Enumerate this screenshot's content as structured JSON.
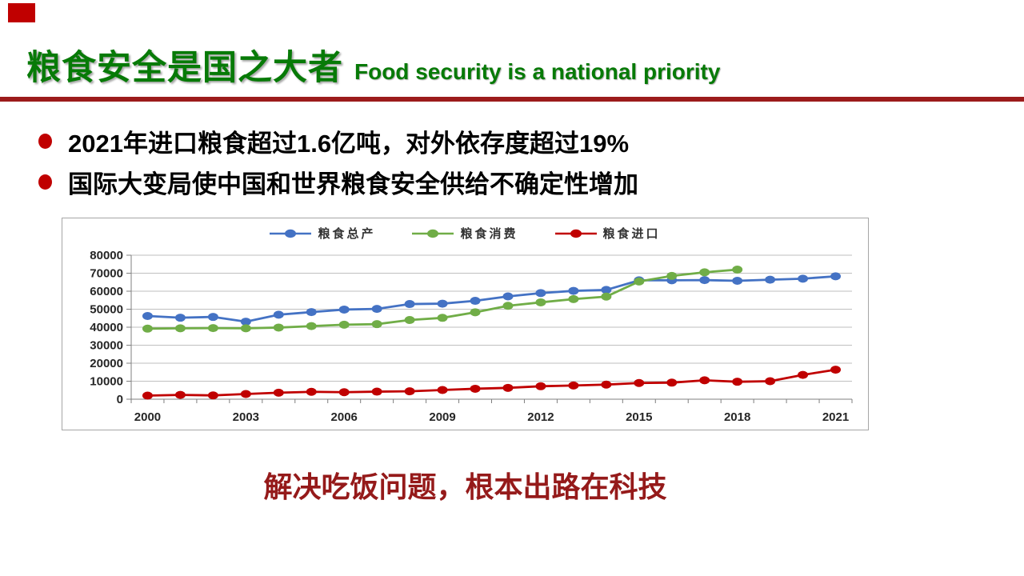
{
  "slide": {
    "title_zh": "粮食安全是国之大者",
    "title_en": "Food security is a national priority",
    "bullets": [
      "2021年进口粮食超过1.6亿吨，对外依存度超过19%",
      "国际大变局使中国和世界粮食安全供给不确定性增加"
    ],
    "slogan": "解决吃饭问题，根本出路在科技"
  },
  "colors": {
    "title_green": "#077A07",
    "divider_red": "#9C1B1B",
    "bullet_red": "#C00000",
    "slogan_red": "#951A1A",
    "grid_gray": "#BFBFBF",
    "axis_gray": "#7F7F7F"
  },
  "chart_data": {
    "type": "line",
    "x": [
      2000,
      2001,
      2002,
      2003,
      2004,
      2005,
      2006,
      2007,
      2008,
      2009,
      2010,
      2011,
      2012,
      2013,
      2014,
      2015,
      2016,
      2017,
      2018,
      2019,
      2020,
      2021
    ],
    "x_tick_labels": [
      "2000",
      "2003",
      "2006",
      "2009",
      "2012",
      "2015",
      "2018",
      "2021"
    ],
    "y_tick_labels": [
      "0",
      "10000",
      "20000",
      "30000",
      "40000",
      "50000",
      "60000",
      "70000",
      "80000"
    ],
    "ylim": [
      0,
      80000
    ],
    "y_tick_step": 10000,
    "grid": true,
    "legend_position": "top-center",
    "marker": "circle",
    "series": [
      {
        "name": "粮食总产",
        "color": "#4472C4",
        "values": [
          46218,
          45264,
          45706,
          43070,
          46947,
          48402,
          49804,
          50160,
          52871,
          53082,
          54648,
          57121,
          58958,
          60194,
          60703,
          66060,
          66044,
          66161,
          65789,
          66384,
          66949,
          68285
        ]
      },
      {
        "name": "粮食消费",
        "color": "#70AD47",
        "values": [
          39200,
          39400,
          39500,
          39400,
          39800,
          40600,
          41400,
          41700,
          44000,
          45200,
          48300,
          51900,
          53800,
          55600,
          57000,
          65400,
          68500,
          70500,
          72000,
          null,
          null,
          null
        ]
      },
      {
        "name": "粮食进口",
        "color": "#C00000",
        "values": [
          2000,
          2400,
          2100,
          2900,
          3600,
          4100,
          3900,
          4200,
          4400,
          5100,
          5800,
          6300,
          7200,
          7600,
          8100,
          9000,
          9200,
          10500,
          9700,
          10000,
          13500,
          16400
        ]
      }
    ]
  }
}
